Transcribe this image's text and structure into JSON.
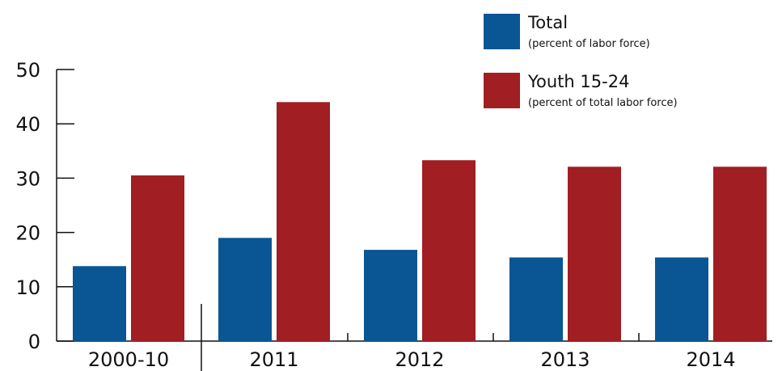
{
  "chart_data": {
    "type": "bar",
    "categories": [
      "2000-10",
      "2011",
      "2012",
      "2013",
      "2014"
    ],
    "series": [
      {
        "name": "Total",
        "name_note": "(percent of labor force)",
        "color": "#0a5694",
        "values": [
          13.8,
          19.0,
          16.8,
          15.4,
          15.4
        ]
      },
      {
        "name": "Youth 15-24",
        "name_note": "(percent of total labor force)",
        "color": "#a11e23",
        "values": [
          30.5,
          44.0,
          33.3,
          32.1,
          32.1
        ]
      }
    ],
    "yticks": [
      0,
      10,
      20,
      30,
      40,
      50
    ],
    "ylim": [
      0,
      50
    ],
    "title": "",
    "xlabel": "",
    "ylabel": "",
    "grid": false,
    "legend_position": "top-right"
  }
}
